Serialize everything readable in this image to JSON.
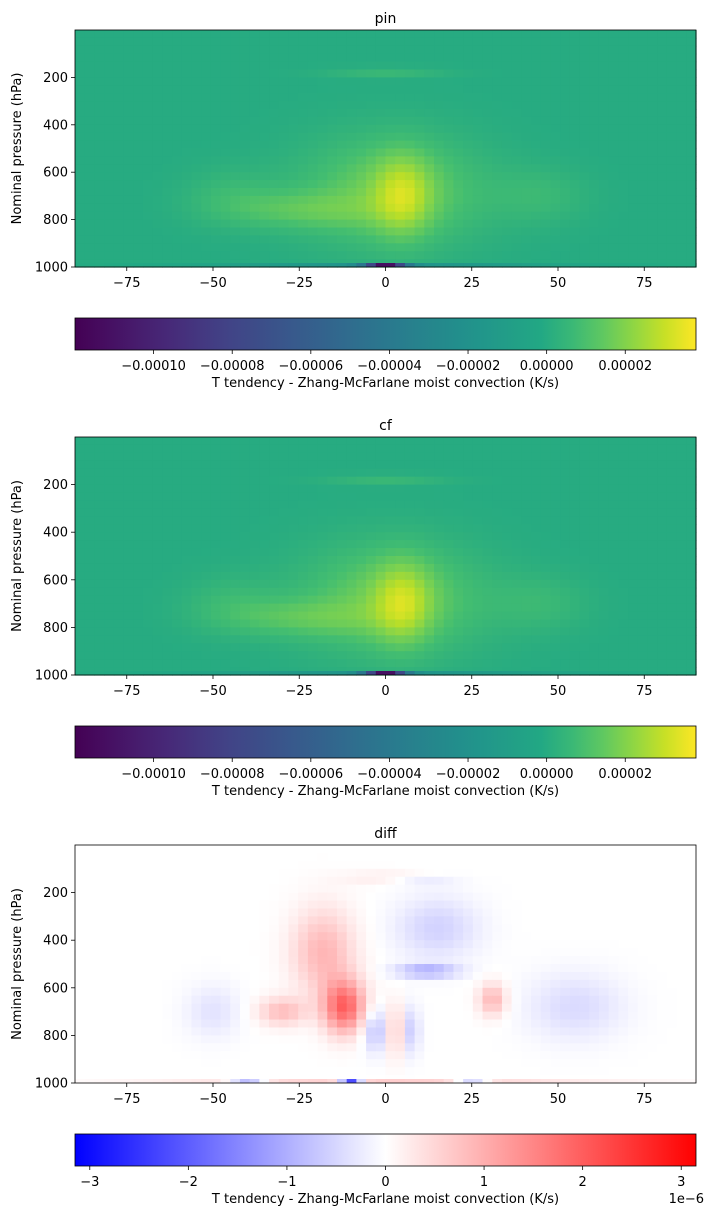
{
  "chart_data": [
    {
      "type": "heatmap",
      "title": "pin",
      "ylabel": "Nominal pressure (hPa)",
      "x_ticks": [
        -75,
        -50,
        -25,
        0,
        25,
        50,
        75
      ],
      "y_ticks": [
        200,
        400,
        600,
        800,
        1000
      ],
      "xlim": [
        -90,
        90
      ],
      "ylim": [
        1000,
        0
      ],
      "colormap": "viridis",
      "colorbar": {
        "label": "T tendency - Zhang-McFarlane moist convection (K/s)",
        "range": [
          -0.00012,
          3.8e-05
        ],
        "ticks": [
          -0.0001,
          -8e-05,
          -6e-05,
          -4e-05,
          -2e-05,
          0.0,
          2e-05
        ],
        "tick_labels": [
          "−0.00010",
          "−0.00008",
          "−0.00006",
          "−0.00004",
          "−0.00002",
          "0.00000",
          "0.00002"
        ]
      }
    },
    {
      "type": "heatmap",
      "title": "cf",
      "ylabel": "Nominal pressure (hPa)",
      "x_ticks": [
        -75,
        -50,
        -25,
        0,
        25,
        50,
        75
      ],
      "y_ticks": [
        200,
        400,
        600,
        800,
        1000
      ],
      "xlim": [
        -90,
        90
      ],
      "ylim": [
        1000,
        0
      ],
      "colormap": "viridis",
      "colorbar": {
        "label": "T tendency - Zhang-McFarlane moist convection (K/s)",
        "range": [
          -0.00012,
          3.8e-05
        ],
        "ticks": [
          -0.0001,
          -8e-05,
          -6e-05,
          -4e-05,
          -2e-05,
          0.0,
          2e-05
        ],
        "tick_labels": [
          "−0.00010",
          "−0.00008",
          "−0.00006",
          "−0.00004",
          "−0.00002",
          "0.00000",
          "0.00002"
        ]
      }
    },
    {
      "type": "heatmap",
      "title": "diff",
      "ylabel": "Nominal pressure (hPa)",
      "x_ticks": [
        -75,
        -50,
        -25,
        0,
        25,
        50,
        75
      ],
      "y_ticks": [
        200,
        400,
        600,
        800,
        1000
      ],
      "xlim": [
        -90,
        90
      ],
      "ylim": [
        1000,
        0
      ],
      "colormap": "bwr",
      "colorbar": {
        "label": "T tendency - Zhang-McFarlane moist convection (K/s)",
        "range": [
          -3.15,
          3.15
        ],
        "ticks": [
          -3,
          -2,
          -1,
          0,
          1,
          2,
          3
        ],
        "tick_labels": [
          "−3",
          "−2",
          "−1",
          "0",
          "1",
          "2",
          "3"
        ],
        "offset_text": "1e−6"
      }
    }
  ]
}
